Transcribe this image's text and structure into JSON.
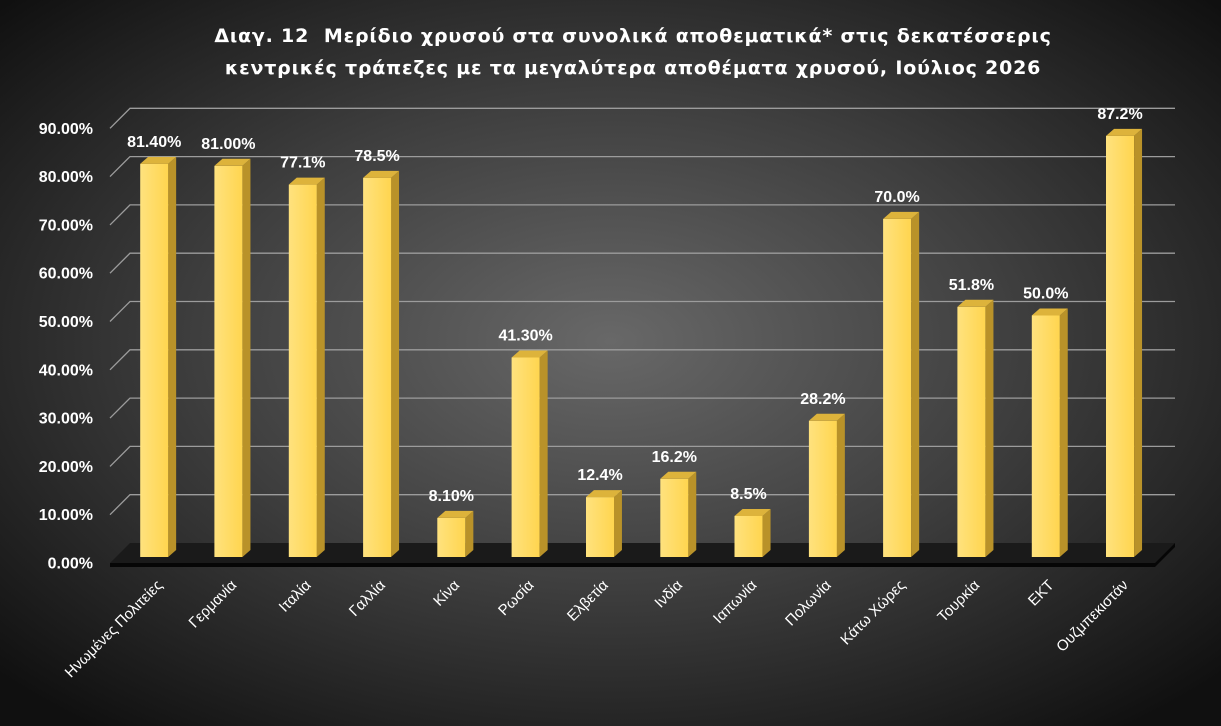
{
  "chart_data": {
    "type": "bar",
    "title_lines": [
      "Διαγ. 12  Μερίδιο χρυσού στα συνολικά αποθεματικά* στις δεκατέσσερις",
      "κεντρικές τράπεζες με τα μεγαλύτερα αποθέματα χρυσού, Ιούλιος 2026"
    ],
    "categories": [
      "Ηνωμένες Πολιτείες",
      "Γερμανία",
      "Ιταλία",
      "Γαλλία",
      "Κίνα",
      "Ρωσία",
      "Ελβετία",
      "Ινδία",
      "Ιαπωνία",
      "Πολωνία",
      "Κάτω Χώρες",
      "Τουρκία",
      "ΕΚΤ",
      "Ουζμπεκιστάν"
    ],
    "values": [
      81.4,
      81.0,
      77.1,
      78.5,
      8.1,
      41.3,
      12.4,
      16.2,
      8.5,
      28.2,
      70.0,
      51.8,
      50.0,
      87.2
    ],
    "data_labels": [
      "81.40%",
      "81.00%",
      "77.1%",
      "78.5%",
      "8.10%",
      "41.30%",
      "12.4%",
      "16.2%",
      "8.5%",
      "28.2%",
      "70.0%",
      "51.8%",
      "50.0%",
      "87.2%"
    ],
    "ylim": [
      0,
      90
    ],
    "y_ticks": [
      0,
      10,
      20,
      30,
      40,
      50,
      60,
      70,
      80,
      90
    ],
    "y_tick_labels": [
      "0.00%",
      "10.00%",
      "20.00%",
      "30.00%",
      "40.00%",
      "50.00%",
      "60.00%",
      "70.00%",
      "80.00%",
      "90.00%"
    ],
    "grid": true,
    "legend": false,
    "colors": {
      "bar": "#FFD54F",
      "bar_highlight": "#FFE27E",
      "bar_side": "#B99229",
      "bar_top": "#DDB33B",
      "gridline": "#9C9C9C",
      "floor": "#1A1A1A",
      "floor_edge": "#060606",
      "text": "#FFFFFF"
    }
  }
}
